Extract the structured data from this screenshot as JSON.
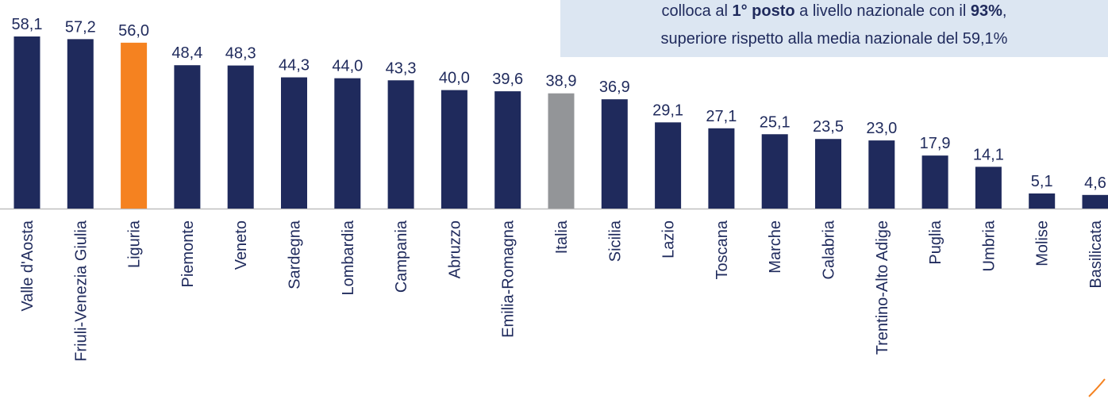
{
  "chart_data": {
    "type": "bar",
    "categories": [
      "Valle d'Aosta",
      "Friuli-Venezia Giulia",
      "Liguria",
      "Piemonte",
      "Veneto",
      "Sardegna",
      "Lombardia",
      "Campania",
      "Abruzzo",
      "Emilia-Romagna",
      "Italia",
      "Sicilia",
      "Lazio",
      "Toscana",
      "Marche",
      "Calabria",
      "Trentino-Alto Adige",
      "Puglia",
      "Umbria",
      "Molise",
      "Basilicata"
    ],
    "values": [
      58.1,
      57.2,
      56.0,
      48.4,
      48.3,
      44.3,
      44.0,
      43.3,
      40.0,
      39.6,
      38.9,
      36.9,
      29.1,
      27.1,
      25.1,
      23.5,
      23.0,
      17.9,
      14.1,
      5.1,
      4.6
    ],
    "value_labels": [
      "58,1",
      "57,2",
      "56,0",
      "48,4",
      "48,3",
      "44,3",
      "44,0",
      "43,3",
      "40,0",
      "39,6",
      "38,9",
      "36,9",
      "29,1",
      "27,1",
      "25,1",
      "23,5",
      "23,0",
      "17,9",
      "14,1",
      "5,1",
      "4,6"
    ],
    "colors": [
      "#1f2a5c",
      "#1f2a5c",
      "#f58220",
      "#1f2a5c",
      "#1f2a5c",
      "#1f2a5c",
      "#1f2a5c",
      "#1f2a5c",
      "#1f2a5c",
      "#1f2a5c",
      "#939598",
      "#1f2a5c",
      "#1f2a5c",
      "#1f2a5c",
      "#1f2a5c",
      "#1f2a5c",
      "#1f2a5c",
      "#1f2a5c",
      "#1f2a5c",
      "#1f2a5c",
      "#1f2a5c"
    ],
    "annotation": [
      [
        "colloca al ",
        "1° posto",
        " a livello nazionale con il ",
        "93%",
        ","
      ],
      [
        "superiore rispetto alla media nazionale del 59,1%"
      ]
    ]
  }
}
